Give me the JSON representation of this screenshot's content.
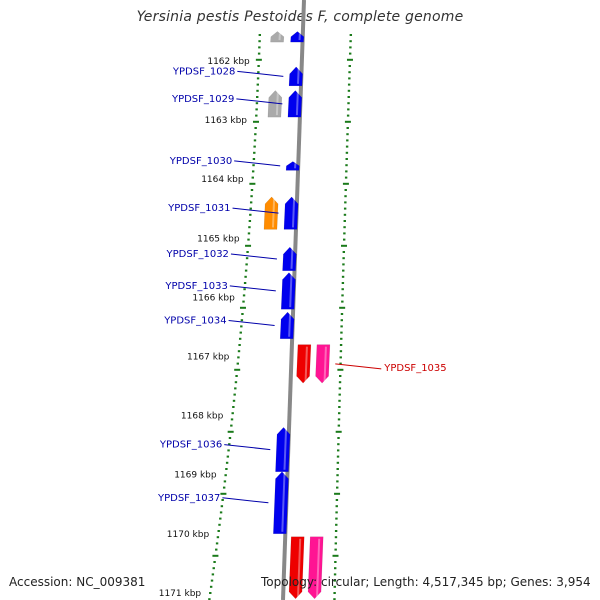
{
  "title": "Yersinia pestis Pestoides F, complete genome",
  "footer": {
    "accession": "Accession: NC_009381",
    "topology": "Topology: circular; Length: 4,517,345 bp; Genes: 3,954"
  },
  "colors": {
    "background": "#ffffff",
    "backbone": "#888888",
    "tick": "#1a7a1a",
    "gene_blue": "#0000ee",
    "gene_gray": "#aaaaaa",
    "gene_orange": "#ff8c00",
    "gene_red": "#ee0000",
    "gene_pink": "#ff1493",
    "label_blue": "#0000aa",
    "label_red": "#cc0000"
  },
  "ruler": [
    {
      "kbp": 1162,
      "label": "1162 kbp"
    },
    {
      "kbp": 1163,
      "label": "1163 kbp"
    },
    {
      "kbp": 1164,
      "label": "1164 kbp"
    },
    {
      "kbp": 1165,
      "label": "1165 kbp"
    },
    {
      "kbp": 1166,
      "label": "1166 kbp"
    },
    {
      "kbp": 1167,
      "label": "1167 kbp"
    },
    {
      "kbp": 1168,
      "label": "1168 kbp"
    },
    {
      "kbp": 1169,
      "label": "1169 kbp"
    },
    {
      "kbp": 1170,
      "label": "1170 kbp"
    },
    {
      "kbp": 1171,
      "label": "1171 kbp"
    }
  ],
  "genes": [
    {
      "label": "YPDSF_1028",
      "color": "blue",
      "strand": "+",
      "start_kbp": 1162.1,
      "end_kbp": 1162.42
    },
    {
      "label": "YPDSF_1029",
      "color": "blue",
      "strand": "+",
      "start_kbp": 1162.5,
      "end_kbp": 1162.95
    },
    {
      "label": "",
      "color": "gray",
      "strand": "+",
      "start_kbp": 1162.5,
      "end_kbp": 1162.95
    },
    {
      "label": "YPDSF_1030",
      "color": "blue",
      "strand": "+",
      "start_kbp": 1163.7,
      "end_kbp": 1163.85
    },
    {
      "label": "YPDSF_1031",
      "color": "blue",
      "strand": "+",
      "start_kbp": 1164.3,
      "end_kbp": 1164.85
    },
    {
      "label": "",
      "color": "orange",
      "strand": "+",
      "start_kbp": 1164.3,
      "end_kbp": 1164.85
    },
    {
      "label": "YPDSF_1032",
      "color": "blue",
      "strand": "+",
      "start_kbp": 1165.15,
      "end_kbp": 1165.55
    },
    {
      "label": "YPDSF_1033",
      "color": "blue",
      "strand": "+",
      "start_kbp": 1165.58,
      "end_kbp": 1166.2
    },
    {
      "label": "YPDSF_1034",
      "color": "blue",
      "strand": "+",
      "start_kbp": 1166.25,
      "end_kbp": 1166.7
    },
    {
      "label": "YPDSF_1035",
      "color": "red",
      "strand": "-",
      "start_kbp": 1166.8,
      "end_kbp": 1167.45
    },
    {
      "label": "",
      "color": "pink",
      "strand": "-",
      "start_kbp": 1166.8,
      "end_kbp": 1167.45
    },
    {
      "label": "YPDSF_1036",
      "color": "blue",
      "strand": "+",
      "start_kbp": 1168.2,
      "end_kbp": 1168.95
    },
    {
      "label": "YPDSF_1037",
      "color": "blue",
      "strand": "+",
      "start_kbp": 1168.95,
      "end_kbp": 1170.0
    },
    {
      "label": "",
      "color": "red",
      "strand": "-",
      "start_kbp": 1170.05,
      "end_kbp": 1171.1
    },
    {
      "label": "",
      "color": "pink",
      "strand": "-",
      "start_kbp": 1170.05,
      "end_kbp": 1171.1
    },
    {
      "label": "",
      "color": "gray",
      "strand": "+",
      "start_kbp": 1161.5,
      "end_kbp": 1161.68
    },
    {
      "label": "",
      "color": "blue",
      "strand": "+",
      "start_kbp": 1161.5,
      "end_kbp": 1161.68
    }
  ]
}
